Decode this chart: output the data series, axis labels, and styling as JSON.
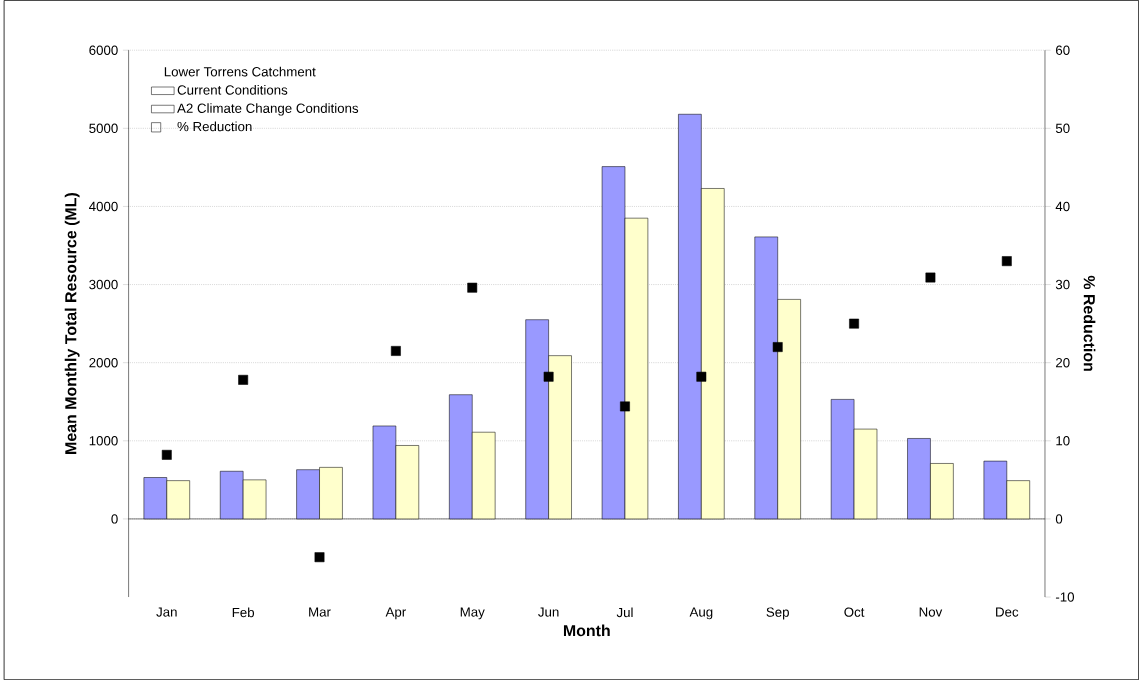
{
  "chart_data": {
    "type": "bar",
    "xlabel": "Month",
    "ylabel": "Mean Monthly Total Resource (ML)",
    "y2label": "% Reduction",
    "legend_title": "Lower Torrens Catchment",
    "categories": [
      "Jan",
      "Feb",
      "Mar",
      "Apr",
      "May",
      "Jun",
      "Jul",
      "Aug",
      "Sep",
      "Oct",
      "Nov",
      "Dec"
    ],
    "series": [
      {
        "name": "Current Conditions",
        "color": "#9999ff",
        "values": [
          530,
          610,
          630,
          1190,
          1590,
          2550,
          4510,
          5180,
          3610,
          1530,
          1030,
          740
        ]
      },
      {
        "name": "A2 Climate Change Conditions",
        "color": "#ffffcc",
        "values": [
          490,
          500,
          660,
          940,
          1110,
          2090,
          3850,
          4230,
          2810,
          1150,
          710,
          490
        ]
      },
      {
        "name": "% Reduction",
        "type": "scatter",
        "axis": "y2",
        "marker": "square",
        "color": "#000000",
        "values": [
          8.2,
          17.8,
          -4.9,
          21.5,
          29.6,
          18.2,
          14.4,
          18.2,
          22,
          25,
          30.9,
          33
        ]
      }
    ],
    "ylim": [
      -1000,
      6000
    ],
    "yticks": [
      0,
      1000,
      2000,
      3000,
      4000,
      5000,
      6000
    ],
    "y2lim": [
      -10,
      60
    ],
    "y2ticks": [
      -10,
      0,
      10,
      20,
      30,
      40,
      50,
      60
    ],
    "grid": "y",
    "legend": "top left"
  }
}
